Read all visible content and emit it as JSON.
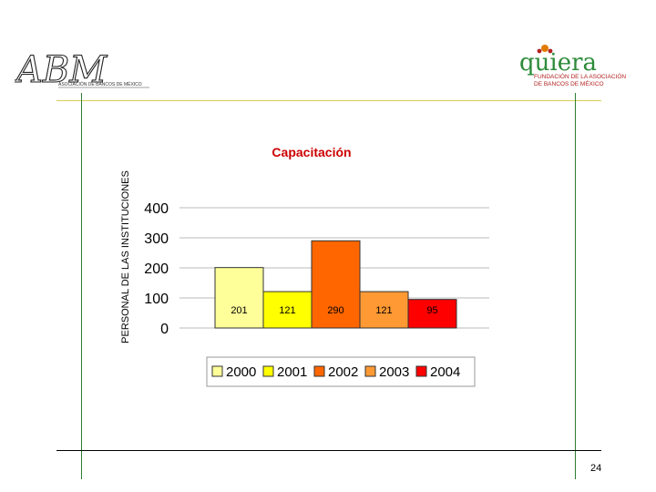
{
  "logos": {
    "left_text": "ABM",
    "left_subtitle": "ASOCIACIÓN DE BANCOS DE MÉXICO",
    "right_text": "quiera",
    "right_subtitle_line1": "FUNDACIÓN DE LA ASOCIACIÓN",
    "right_subtitle_line2": "DE BANCOS DE MÉXICO"
  },
  "colors": {
    "frame_yellow": "#d8cc5a",
    "frame_green": "#2e7d32",
    "title_red": "#cc0000",
    "logo_green": "#2e8b3a",
    "logo_red": "#b22222"
  },
  "slide_number": "24",
  "chart_data": {
    "type": "bar",
    "title": "Capacitación",
    "ylabel": "PERSONAL DE LAS INSTITUCIONES",
    "xlabel": "",
    "ylim": [
      0,
      400
    ],
    "yticks": [
      0,
      100,
      200,
      300,
      400
    ],
    "grid": true,
    "legend_position": "bottom",
    "series": [
      {
        "name": "2000",
        "value": 201,
        "label": "201",
        "color": "#ffff99"
      },
      {
        "name": "2001",
        "value": 121,
        "label": "121",
        "color": "#ffff00"
      },
      {
        "name": "2002",
        "value": 290,
        "label": "290",
        "color": "#ff6600"
      },
      {
        "name": "2003",
        "value": 121,
        "label": "121",
        "color": "#ff9933"
      },
      {
        "name": "2004",
        "value": 95,
        "label": "95",
        "color": "#ff0000"
      }
    ]
  }
}
